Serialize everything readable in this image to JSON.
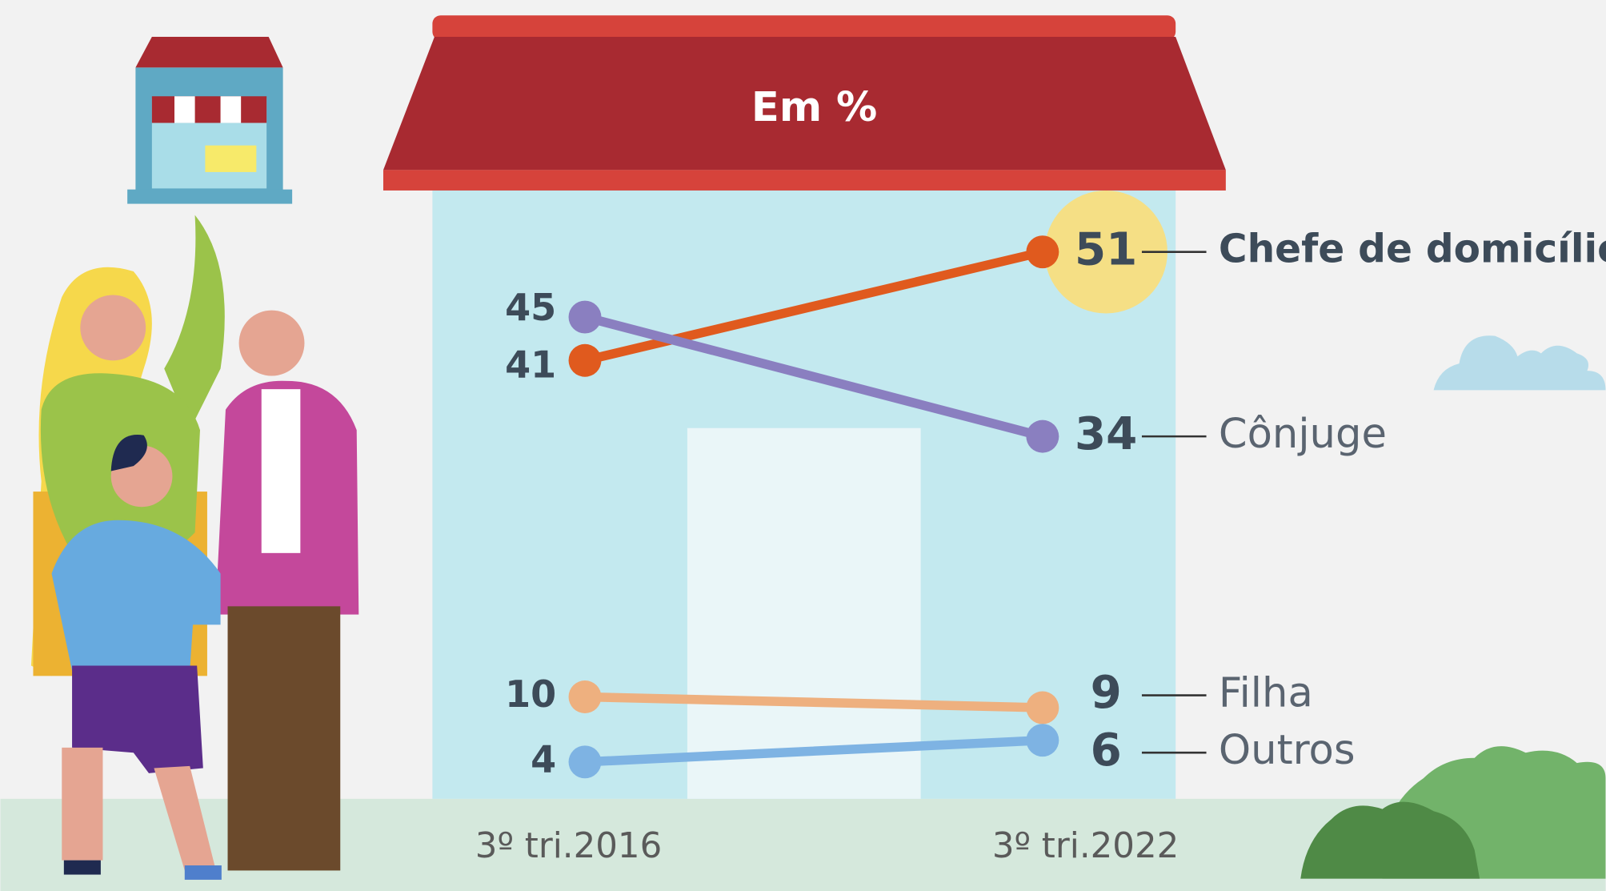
{
  "chart_data": {
    "type": "slope",
    "title": "Em %",
    "categories": [
      "3º tri.2016",
      "3º tri.2022"
    ],
    "series": [
      {
        "name": "Chefe de domicílio",
        "color": "#e05a1e",
        "values": [
          41,
          51
        ]
      },
      {
        "name": "Cônjuge",
        "color": "#8a7fc0",
        "values": [
          45,
          34
        ]
      },
      {
        "name": "Filha",
        "color": "#eeb07f",
        "values": [
          10,
          9
        ]
      },
      {
        "name": "Outros",
        "color": "#7eb3e3",
        "values": [
          4,
          6
        ]
      }
    ]
  }
}
